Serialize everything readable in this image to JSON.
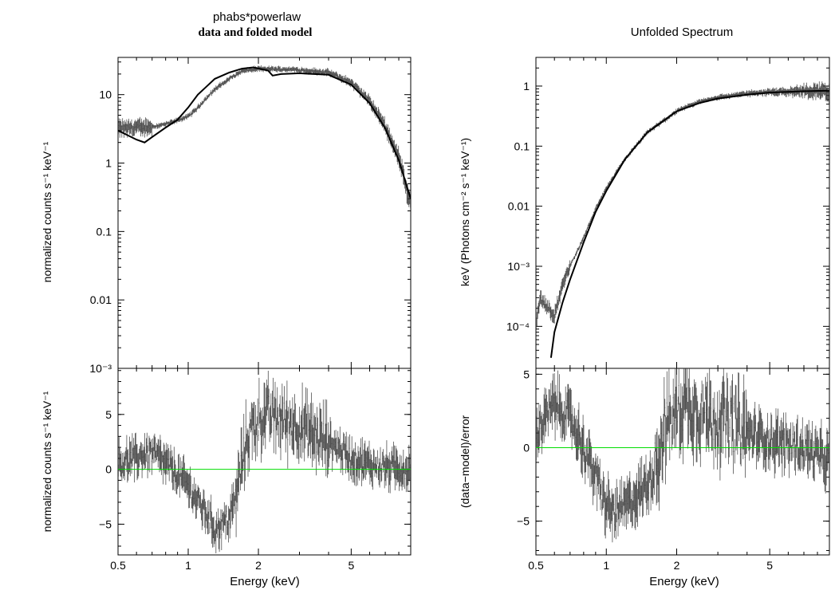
{
  "titles": {
    "left_model": "phabs*powerlaw",
    "left_sub": "data and folded model",
    "right": "Unfolded Spectrum"
  },
  "axis_labels": {
    "x": "Energy (keV)",
    "left_top_y": "normalized counts s⁻¹ keV⁻¹",
    "left_bottom_y": "normalized counts s⁻¹ keV⁻¹",
    "right_top_y": "keV (Photons cm⁻² s⁻¹ keV⁻¹)",
    "right_bottom_y": "(data−model)/error"
  },
  "colors": {
    "data": "#000000",
    "model": "#000000",
    "zero_line": "#00dd00"
  },
  "chart_data": [
    {
      "type": "line",
      "title": "data and folded model",
      "xlabel": "Energy (keV)",
      "ylabel": "normalized counts s⁻¹ keV⁻¹",
      "xscale": "log",
      "yscale": "log",
      "xlim": [
        0.5,
        9.0
      ],
      "ylim": [
        0.001,
        35
      ],
      "xticks": [
        "0.5",
        "1",
        "2",
        "5"
      ],
      "yticks": [
        "10⁻³",
        "0.01",
        "0.1",
        "1",
        "10"
      ],
      "series": [
        {
          "style": "crosses",
          "x": [
            0.5,
            0.6,
            0.7,
            0.8,
            0.9,
            1.0,
            1.1,
            1.3,
            1.5,
            1.7,
            2.0,
            2.5,
            3.0,
            4.0,
            5.0,
            6.0,
            7.0,
            8.0,
            9.0
          ],
          "y": [
            3.2,
            3.3,
            3.4,
            3.7,
            4.2,
            4.8,
            6.5,
            12.0,
            17.0,
            22.0,
            24.0,
            23.5,
            23.0,
            21.0,
            15.0,
            8.0,
            3.5,
            1.2,
            0.25
          ]
        },
        {
          "style": "line",
          "x": [
            0.5,
            0.6,
            0.65,
            0.7,
            0.8,
            0.9,
            1.0,
            1.1,
            1.3,
            1.5,
            1.7,
            1.9,
            2.2,
            2.3,
            2.5,
            3.0,
            4.0,
            5.0,
            6.0,
            7.0,
            8.0,
            9.0
          ],
          "y": [
            3.0,
            2.2,
            2.0,
            2.4,
            3.3,
            4.3,
            6.5,
            10.0,
            17.0,
            21.0,
            24.0,
            25.0,
            22.5,
            19.0,
            20.0,
            20.5,
            19.5,
            14.0,
            7.5,
            3.2,
            1.1,
            0.3
          ]
        }
      ]
    },
    {
      "type": "line",
      "title": "",
      "xlabel": "Energy (keV)",
      "ylabel": "normalized counts s⁻¹ keV⁻¹",
      "xscale": "log",
      "yscale": "linear",
      "xlim": [
        0.5,
        9.0
      ],
      "ylim": [
        -7.8,
        9.2
      ],
      "xticks": [
        "0.5",
        "1",
        "2",
        "5"
      ],
      "yticks": [
        "−5",
        "0",
        "5"
      ],
      "series": [
        {
          "style": "crosses",
          "x": [
            0.5,
            0.55,
            0.6,
            0.65,
            0.7,
            0.75,
            0.8,
            0.9,
            1.0,
            1.1,
            1.2,
            1.3,
            1.4,
            1.5,
            1.6,
            1.7,
            1.8,
            2.0,
            2.2,
            2.5,
            3.0,
            3.5,
            4.0,
            4.5,
            5.0,
            6.0,
            7.0,
            8.0,
            9.0
          ],
          "y": [
            0.5,
            0.8,
            1.0,
            1.4,
            1.5,
            1.0,
            0.5,
            -0.5,
            -1.5,
            -3.0,
            -4.0,
            -5.5,
            -5.0,
            -4.5,
            -2.5,
            0.5,
            3.0,
            4.5,
            5.0,
            4.5,
            4.0,
            3.0,
            2.5,
            1.8,
            1.0,
            0.4,
            0.2,
            0.1,
            0.0
          ]
        },
        {
          "style": "zero_line",
          "x": [
            0.5,
            9.0
          ],
          "y": [
            0,
            0
          ]
        }
      ]
    },
    {
      "type": "line",
      "title": "Unfolded Spectrum",
      "xlabel": "Energy (keV)",
      "ylabel": "keV (Photons cm⁻² s⁻¹ keV⁻¹)",
      "xscale": "log",
      "yscale": "log",
      "xlim": [
        0.5,
        9.0
      ],
      "ylim": [
        2e-05,
        3.0
      ],
      "xticks": [
        "0.5",
        "1",
        "2",
        "5"
      ],
      "yticks": [
        "10⁻⁴",
        "10⁻³",
        "0.01",
        "0.1",
        "1"
      ],
      "series": [
        {
          "style": "crosses",
          "x": [
            0.5,
            0.52,
            0.6,
            0.65,
            0.7,
            0.8,
            0.9,
            1.0,
            1.2,
            1.5,
            2.0,
            2.5,
            3.0,
            4.0,
            5.0,
            6.0,
            7.0,
            8.0,
            9.0
          ],
          "y": [
            0.0001,
            0.0003,
            0.00015,
            0.0005,
            0.001,
            0.003,
            0.009,
            0.02,
            0.06,
            0.17,
            0.38,
            0.55,
            0.65,
            0.75,
            0.8,
            0.82,
            0.83,
            0.85,
            0.75
          ]
        },
        {
          "style": "line",
          "x": [
            0.58,
            0.6,
            0.65,
            0.7,
            0.8,
            0.9,
            1.0,
            1.2,
            1.5,
            2.0,
            2.5,
            3.0,
            4.0,
            5.0,
            6.0,
            7.0,
            8.0,
            9.0
          ],
          "y": [
            3e-05,
            8e-05,
            0.00025,
            0.0006,
            0.0025,
            0.008,
            0.018,
            0.06,
            0.17,
            0.38,
            0.52,
            0.62,
            0.72,
            0.78,
            0.8,
            0.82,
            0.83,
            0.84
          ]
        }
      ]
    },
    {
      "type": "line",
      "title": "",
      "xlabel": "Energy (keV)",
      "ylabel": "(data−model)/error",
      "xscale": "log",
      "yscale": "linear",
      "xlim": [
        0.5,
        9.0
      ],
      "ylim": [
        -7.3,
        5.4
      ],
      "xticks": [
        "0.5",
        "1",
        "2",
        "5"
      ],
      "yticks": [
        "−5",
        "0",
        "5"
      ],
      "series": [
        {
          "style": "crosses",
          "x": [
            0.5,
            0.55,
            0.6,
            0.65,
            0.7,
            0.75,
            0.8,
            0.9,
            1.0,
            1.1,
            1.2,
            1.3,
            1.4,
            1.5,
            1.6,
            1.7,
            1.8,
            2.0,
            2.2,
            2.5,
            3.0,
            3.5,
            4.0,
            5.0,
            6.0,
            7.0,
            8.0,
            9.0
          ],
          "y": [
            1.0,
            2.0,
            3.0,
            2.5,
            2.0,
            1.0,
            0.0,
            -2.0,
            -4.0,
            -4.5,
            -4.0,
            -3.5,
            -3.0,
            -2.5,
            -1.5,
            0.0,
            1.5,
            2.5,
            3.0,
            2.5,
            2.0,
            1.5,
            1.0,
            0.5,
            0.2,
            0.0,
            -0.5,
            -1.0
          ]
        },
        {
          "style": "zero_line",
          "x": [
            0.5,
            9.0
          ],
          "y": [
            0,
            0
          ]
        }
      ]
    }
  ]
}
